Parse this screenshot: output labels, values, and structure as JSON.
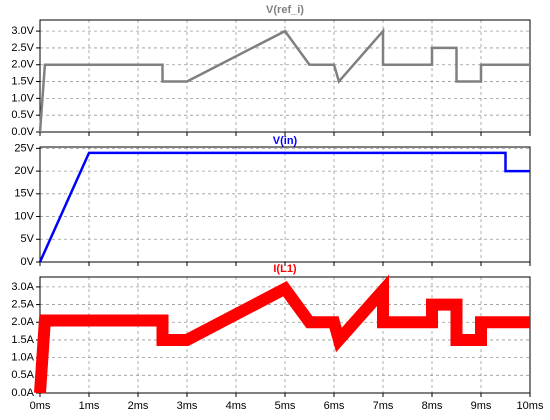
{
  "chart_data": [
    {
      "type": "line",
      "title": "V(ref_i)",
      "color": "#808080",
      "x": [
        0,
        0.1,
        2.5,
        2.5,
        3.0,
        5.0,
        5.5,
        6.0,
        6.1,
        7.0,
        7.0,
        8.0,
        8.0,
        8.5,
        8.5,
        9.0,
        9.0,
        10
      ],
      "values": [
        0,
        2.0,
        2.0,
        1.5,
        1.5,
        3.0,
        2.0,
        2.0,
        1.5,
        3.0,
        2.0,
        2.0,
        2.5,
        2.5,
        1.5,
        1.5,
        2.0,
        2.0
      ],
      "xlim": [
        0,
        10
      ],
      "xticks": [
        0,
        1,
        2,
        3,
        4,
        5,
        6,
        7,
        8,
        9,
        10
      ],
      "ylim": [
        0,
        3.33
      ],
      "yticks": [
        {
          "value": 0,
          "label": "0.0V"
        },
        {
          "value": 0.5,
          "label": "0.5V"
        },
        {
          "value": 1.0,
          "label": "1.0V"
        },
        {
          "value": 1.5,
          "label": "1.5V"
        },
        {
          "value": 2.0,
          "label": "2.0V"
        },
        {
          "value": 2.5,
          "label": "2.5V"
        },
        {
          "value": 3.0,
          "label": "3.0V"
        }
      ],
      "grid": true
    },
    {
      "type": "line",
      "title": "V(in)",
      "color": "#0000ff",
      "x": [
        0,
        1.0,
        9.5,
        9.5,
        10
      ],
      "values": [
        0,
        24,
        24,
        20,
        20
      ],
      "xlim": [
        0,
        10
      ],
      "xticks": [
        0,
        1,
        2,
        3,
        4,
        5,
        6,
        7,
        8,
        9,
        10
      ],
      "ylim": [
        0,
        25.3
      ],
      "yticks": [
        {
          "value": 0,
          "label": "0V"
        },
        {
          "value": 5,
          "label": "5V"
        },
        {
          "value": 10,
          "label": "10V"
        },
        {
          "value": 15,
          "label": "15V"
        },
        {
          "value": 20,
          "label": "20V"
        },
        {
          "value": 25,
          "label": "25V"
        }
      ],
      "grid": true
    },
    {
      "type": "band",
      "title": "I(L1)",
      "color": "#ff0000",
      "x": [
        0,
        0.1,
        2.5,
        2.5,
        3.0,
        5.0,
        5.5,
        6.0,
        6.1,
        7.0,
        7.0,
        8.0,
        8.0,
        8.5,
        8.5,
        9.0,
        9.0,
        10
      ],
      "values": [
        0,
        2.05,
        2.05,
        1.5,
        1.5,
        2.95,
        2.0,
        2.0,
        1.5,
        2.9,
        2.0,
        2.0,
        2.5,
        2.5,
        1.5,
        1.5,
        2.0,
        2.0
      ],
      "xlim": [
        0,
        10
      ],
      "xticks": [
        {
          "value": 0,
          "label": "0ms"
        },
        {
          "value": 1,
          "label": "1ms"
        },
        {
          "value": 2,
          "label": "2ms"
        },
        {
          "value": 3,
          "label": "3ms"
        },
        {
          "value": 4,
          "label": "4ms"
        },
        {
          "value": 5,
          "label": "5ms"
        },
        {
          "value": 6,
          "label": "6ms"
        },
        {
          "value": 7,
          "label": "7ms"
        },
        {
          "value": 8,
          "label": "8ms"
        },
        {
          "value": 9,
          "label": "9ms"
        },
        {
          "value": 10,
          "label": "10ms"
        }
      ],
      "ylim": [
        0,
        3.28
      ],
      "yticks": [
        {
          "value": 0,
          "label": "0.0A"
        },
        {
          "value": 0.5,
          "label": "0.5A"
        },
        {
          "value": 1.0,
          "label": "1.0A"
        },
        {
          "value": 1.5,
          "label": "1.5A"
        },
        {
          "value": 2.0,
          "label": "2.0A"
        },
        {
          "value": 2.5,
          "label": "2.5A"
        },
        {
          "value": 3.0,
          "label": "3.0A"
        }
      ],
      "grid": true
    }
  ]
}
